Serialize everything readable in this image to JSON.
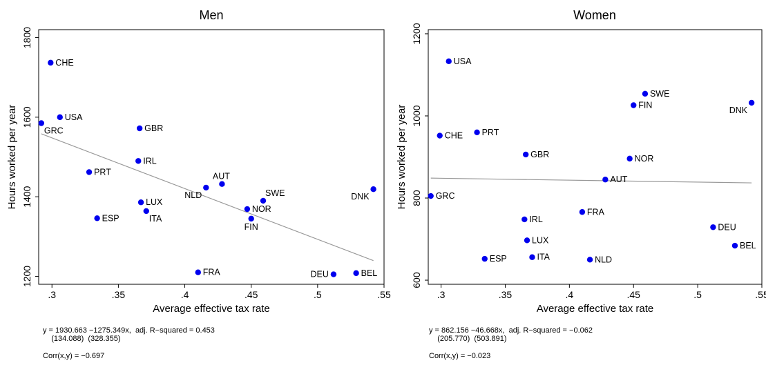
{
  "chart_data": [
    {
      "type": "scatter",
      "title": "Men",
      "xlabel": "Average effective tax rate",
      "ylabel": "Hours worked per year",
      "xlim": [
        0.29,
        0.55
      ],
      "ylim": [
        1180,
        1820
      ],
      "xticks": [
        ".3",
        ".35",
        ".4",
        ".45",
        ".5",
        ".55"
      ],
      "xtick_values": [
        0.3,
        0.35,
        0.4,
        0.45,
        0.5,
        0.55
      ],
      "yticks": [
        "1200",
        "1400",
        "1600",
        "1800"
      ],
      "ytick_values": [
        1200,
        1400,
        1600,
        1800
      ],
      "grid": false,
      "marker_color": "#0000ee",
      "fit_line": {
        "intercept": 1930.663,
        "slope": -1275.349,
        "x_range": [
          0.292,
          0.542
        ],
        "color": "#999999"
      },
      "points": [
        {
          "label": "CHE",
          "x": 0.299,
          "y": 1737,
          "label_pos": "right"
        },
        {
          "label": "USA",
          "x": 0.306,
          "y": 1600,
          "label_pos": "right"
        },
        {
          "label": "GRC",
          "x": 0.292,
          "y": 1585,
          "label_pos": "below-right"
        },
        {
          "label": "GBR",
          "x": 0.366,
          "y": 1572,
          "label_pos": "right"
        },
        {
          "label": "IRL",
          "x": 0.365,
          "y": 1490,
          "label_pos": "right"
        },
        {
          "label": "PRT",
          "x": 0.328,
          "y": 1462,
          "label_pos": "right"
        },
        {
          "label": "AUT",
          "x": 0.428,
          "y": 1432,
          "label_pos": "above-left"
        },
        {
          "label": "NLD",
          "x": 0.416,
          "y": 1423,
          "label_pos": "below-left"
        },
        {
          "label": "DNK",
          "x": 0.542,
          "y": 1419,
          "label_pos": "below-left"
        },
        {
          "label": "SWE",
          "x": 0.459,
          "y": 1390,
          "label_pos": "above-right"
        },
        {
          "label": "LUX",
          "x": 0.367,
          "y": 1386,
          "label_pos": "right"
        },
        {
          "label": "NOR",
          "x": 0.447,
          "y": 1369,
          "label_pos": "right"
        },
        {
          "label": "ITA",
          "x": 0.371,
          "y": 1364,
          "label_pos": "below-right"
        },
        {
          "label": "ESP",
          "x": 0.334,
          "y": 1346,
          "label_pos": "right"
        },
        {
          "label": "FIN",
          "x": 0.45,
          "y": 1345,
          "label_pos": "below"
        },
        {
          "label": "FRA",
          "x": 0.41,
          "y": 1210,
          "label_pos": "right"
        },
        {
          "label": "DEU",
          "x": 0.512,
          "y": 1205,
          "label_pos": "left"
        },
        {
          "label": "BEL",
          "x": 0.529,
          "y": 1208,
          "label_pos": "right"
        }
      ],
      "footnote_line1": "y = 1930.663 −1275.349x,  adj. R−squared = 0.453",
      "footnote_line2": "    (134.088)  (328.355)",
      "footnote_corr": "Corr(x,y) = −0.697"
    },
    {
      "type": "scatter",
      "title": "Women",
      "xlabel": "Average effective tax rate",
      "ylabel": "Hours worked per year",
      "xlim": [
        0.29,
        0.55
      ],
      "ylim": [
        590,
        1210
      ],
      "xticks": [
        ".3",
        ".35",
        ".4",
        ".45",
        ".5",
        ".55"
      ],
      "xtick_values": [
        0.3,
        0.35,
        0.4,
        0.45,
        0.5,
        0.55
      ],
      "yticks": [
        "600",
        "800",
        "1000",
        "1200"
      ],
      "ytick_values": [
        600,
        800,
        1000,
        1200
      ],
      "grid": false,
      "marker_color": "#0000ee",
      "fit_line": {
        "intercept": 862.156,
        "slope": -46.668,
        "x_range": [
          0.292,
          0.542
        ],
        "color": "#999999"
      },
      "points": [
        {
          "label": "USA",
          "x": 0.306,
          "y": 1133,
          "label_pos": "right"
        },
        {
          "label": "SWE",
          "x": 0.459,
          "y": 1054,
          "label_pos": "right"
        },
        {
          "label": "DNK",
          "x": 0.542,
          "y": 1032,
          "label_pos": "below-left"
        },
        {
          "label": "FIN",
          "x": 0.45,
          "y": 1026,
          "label_pos": "right"
        },
        {
          "label": "PRT",
          "x": 0.328,
          "y": 960,
          "label_pos": "right"
        },
        {
          "label": "CHE",
          "x": 0.299,
          "y": 952,
          "label_pos": "right"
        },
        {
          "label": "GBR",
          "x": 0.366,
          "y": 906,
          "label_pos": "right"
        },
        {
          "label": "NOR",
          "x": 0.447,
          "y": 896,
          "label_pos": "right"
        },
        {
          "label": "AUT",
          "x": 0.428,
          "y": 845,
          "label_pos": "right"
        },
        {
          "label": "GRC",
          "x": 0.292,
          "y": 805,
          "label_pos": "right"
        },
        {
          "label": "FRA",
          "x": 0.41,
          "y": 766,
          "label_pos": "right"
        },
        {
          "label": "IRL",
          "x": 0.365,
          "y": 748,
          "label_pos": "right"
        },
        {
          "label": "DEU",
          "x": 0.512,
          "y": 729,
          "label_pos": "right"
        },
        {
          "label": "LUX",
          "x": 0.367,
          "y": 697,
          "label_pos": "right"
        },
        {
          "label": "BEL",
          "x": 0.529,
          "y": 684,
          "label_pos": "right"
        },
        {
          "label": "ITA",
          "x": 0.371,
          "y": 656,
          "label_pos": "right"
        },
        {
          "label": "ESP",
          "x": 0.334,
          "y": 652,
          "label_pos": "right"
        },
        {
          "label": "NLD",
          "x": 0.416,
          "y": 650,
          "label_pos": "right"
        }
      ],
      "footnote_line1": "y = 862.156 −46.668x,  adj. R−squared = −0.062",
      "footnote_line2": "    (205.770)  (503.891)",
      "footnote_corr": "Corr(x,y) = −0.023"
    }
  ]
}
